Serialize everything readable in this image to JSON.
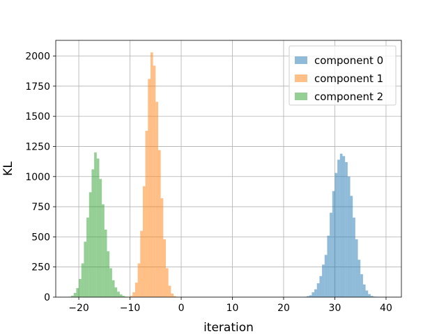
{
  "chart_data": {
    "type": "bar",
    "subtype": "histogram",
    "title": "",
    "xlabel": "iteration",
    "ylabel": "KL",
    "xlim": [
      -24.5,
      43
    ],
    "ylim": [
      0,
      2130
    ],
    "xticks": [
      -20,
      -10,
      0,
      10,
      20,
      30,
      40
    ],
    "xtick_labels": [
      "−20",
      "−10",
      "0",
      "10",
      "20",
      "30",
      "40"
    ],
    "yticks": [
      0,
      250,
      500,
      750,
      1000,
      1250,
      1500,
      1750,
      2000
    ],
    "ytick_labels": [
      "0",
      "250",
      "500",
      "750",
      "1000",
      "1250",
      "1500",
      "1750",
      "2000"
    ],
    "grid": true,
    "legend_position": "upper right",
    "series": [
      {
        "name": "component 0",
        "color": "#1f77b4",
        "opacity": 0.5,
        "bin_edges": [
          24.0,
          24.5,
          25.0,
          25.5,
          26.0,
          26.5,
          27.0,
          27.5,
          28.0,
          28.5,
          29.0,
          29.5,
          30.0,
          30.5,
          31.0,
          31.5,
          32.0,
          32.5,
          33.0,
          33.5,
          34.0,
          34.5,
          35.0,
          35.5,
          36.0,
          36.5,
          37.0,
          37.5,
          38.0,
          38.5,
          39.0,
          39.5
        ],
        "values": [
          3,
          8,
          15,
          40,
          65,
          115,
          175,
          270,
          350,
          510,
          700,
          880,
          1030,
          1140,
          1190,
          1170,
          1120,
          1000,
          840,
          660,
          480,
          310,
          190,
          105,
          55,
          25,
          10,
          4,
          2,
          1,
          1
        ]
      },
      {
        "name": "component 1",
        "color": "#ff7f0e",
        "opacity": 0.5,
        "bin_edges": [
          -10.0,
          -9.5,
          -9.0,
          -8.5,
          -8.0,
          -7.5,
          -7.0,
          -6.5,
          -6.0,
          -5.5,
          -5.0,
          -4.5,
          -4.0,
          -3.5,
          -3.0,
          -2.5,
          -2.0,
          -1.5,
          -1.0,
          -0.5
        ],
        "values": [
          10,
          40,
          120,
          280,
          550,
          920,
          1380,
          1810,
          2030,
          1920,
          1620,
          1220,
          820,
          480,
          240,
          95,
          30,
          8,
          2
        ]
      },
      {
        "name": "component 2",
        "color": "#2ca02c",
        "opacity": 0.5,
        "bin_edges": [
          -22.0,
          -21.5,
          -21.0,
          -20.5,
          -20.0,
          -19.5,
          -19.0,
          -18.5,
          -18.0,
          -17.5,
          -17.0,
          -16.5,
          -16.0,
          -15.5,
          -15.0,
          -14.5,
          -14.0,
          -13.5,
          -13.0,
          -12.5,
          -12.0,
          -11.5,
          -11.0,
          -10.5,
          -10.0,
          -9.5
        ],
        "values": [
          3,
          12,
          35,
          75,
          150,
          280,
          460,
          660,
          870,
          1060,
          1200,
          1150,
          980,
          770,
          560,
          380,
          240,
          140,
          80,
          45,
          22,
          10,
          4,
          2,
          1
        ]
      }
    ]
  }
}
